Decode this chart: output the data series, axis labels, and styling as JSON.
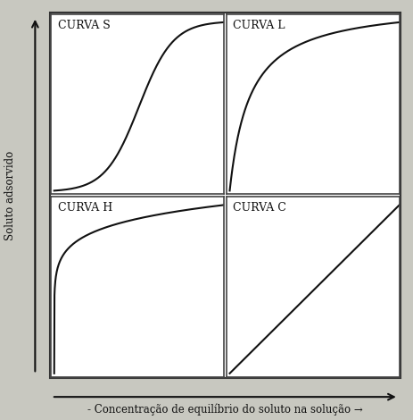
{
  "outer_bg": "#c8c8c0",
  "inner_bg": "#ffffff",
  "curve_color": "#111111",
  "curve_linewidth": 1.5,
  "xlabel": "- Concentração de equilíbrio do soluto na solução →",
  "ylabel": "Soluto adsorvido",
  "subplot_labels": [
    "CURVA S",
    "CURVA L",
    "CURVA H",
    "CURVA C"
  ],
  "label_fontsize": 8.5,
  "subplot_label_fontsize": 9,
  "spine_color": "#444444",
  "spine_linewidth": 1.2
}
